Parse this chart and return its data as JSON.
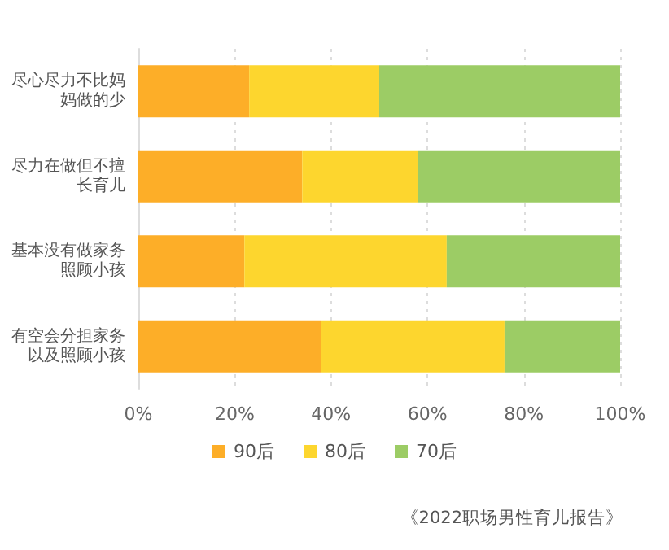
{
  "chart_data": {
    "type": "bar",
    "orientation": "horizontal",
    "stacked": true,
    "categories": [
      "尽心尽力不比妈妈做的少",
      "尽力在做但不擅长育儿",
      "基本没有做家务照顾小孩",
      "有空会分担家务以及照顾小孩"
    ],
    "series": [
      {
        "name": "90后",
        "color": "#fdae28",
        "values": [
          23,
          34,
          22,
          38
        ]
      },
      {
        "name": "80后",
        "color": "#fdd62e",
        "values": [
          27,
          24,
          42,
          38
        ]
      },
      {
        "name": "70后",
        "color": "#9ccc65",
        "values": [
          50,
          42,
          36,
          24
        ]
      }
    ],
    "xlim": [
      0,
      100
    ],
    "xticks": [
      {
        "value": 0,
        "label": "0%"
      },
      {
        "value": 20,
        "label": "20%"
      },
      {
        "value": 40,
        "label": "40%"
      },
      {
        "value": 60,
        "label": "60%"
      },
      {
        "value": 80,
        "label": "80%"
      },
      {
        "value": 100,
        "label": "100%"
      }
    ],
    "grid": "x",
    "legend": "bottom",
    "annotations": [
      "《2022职场男性育儿报告》"
    ]
  }
}
